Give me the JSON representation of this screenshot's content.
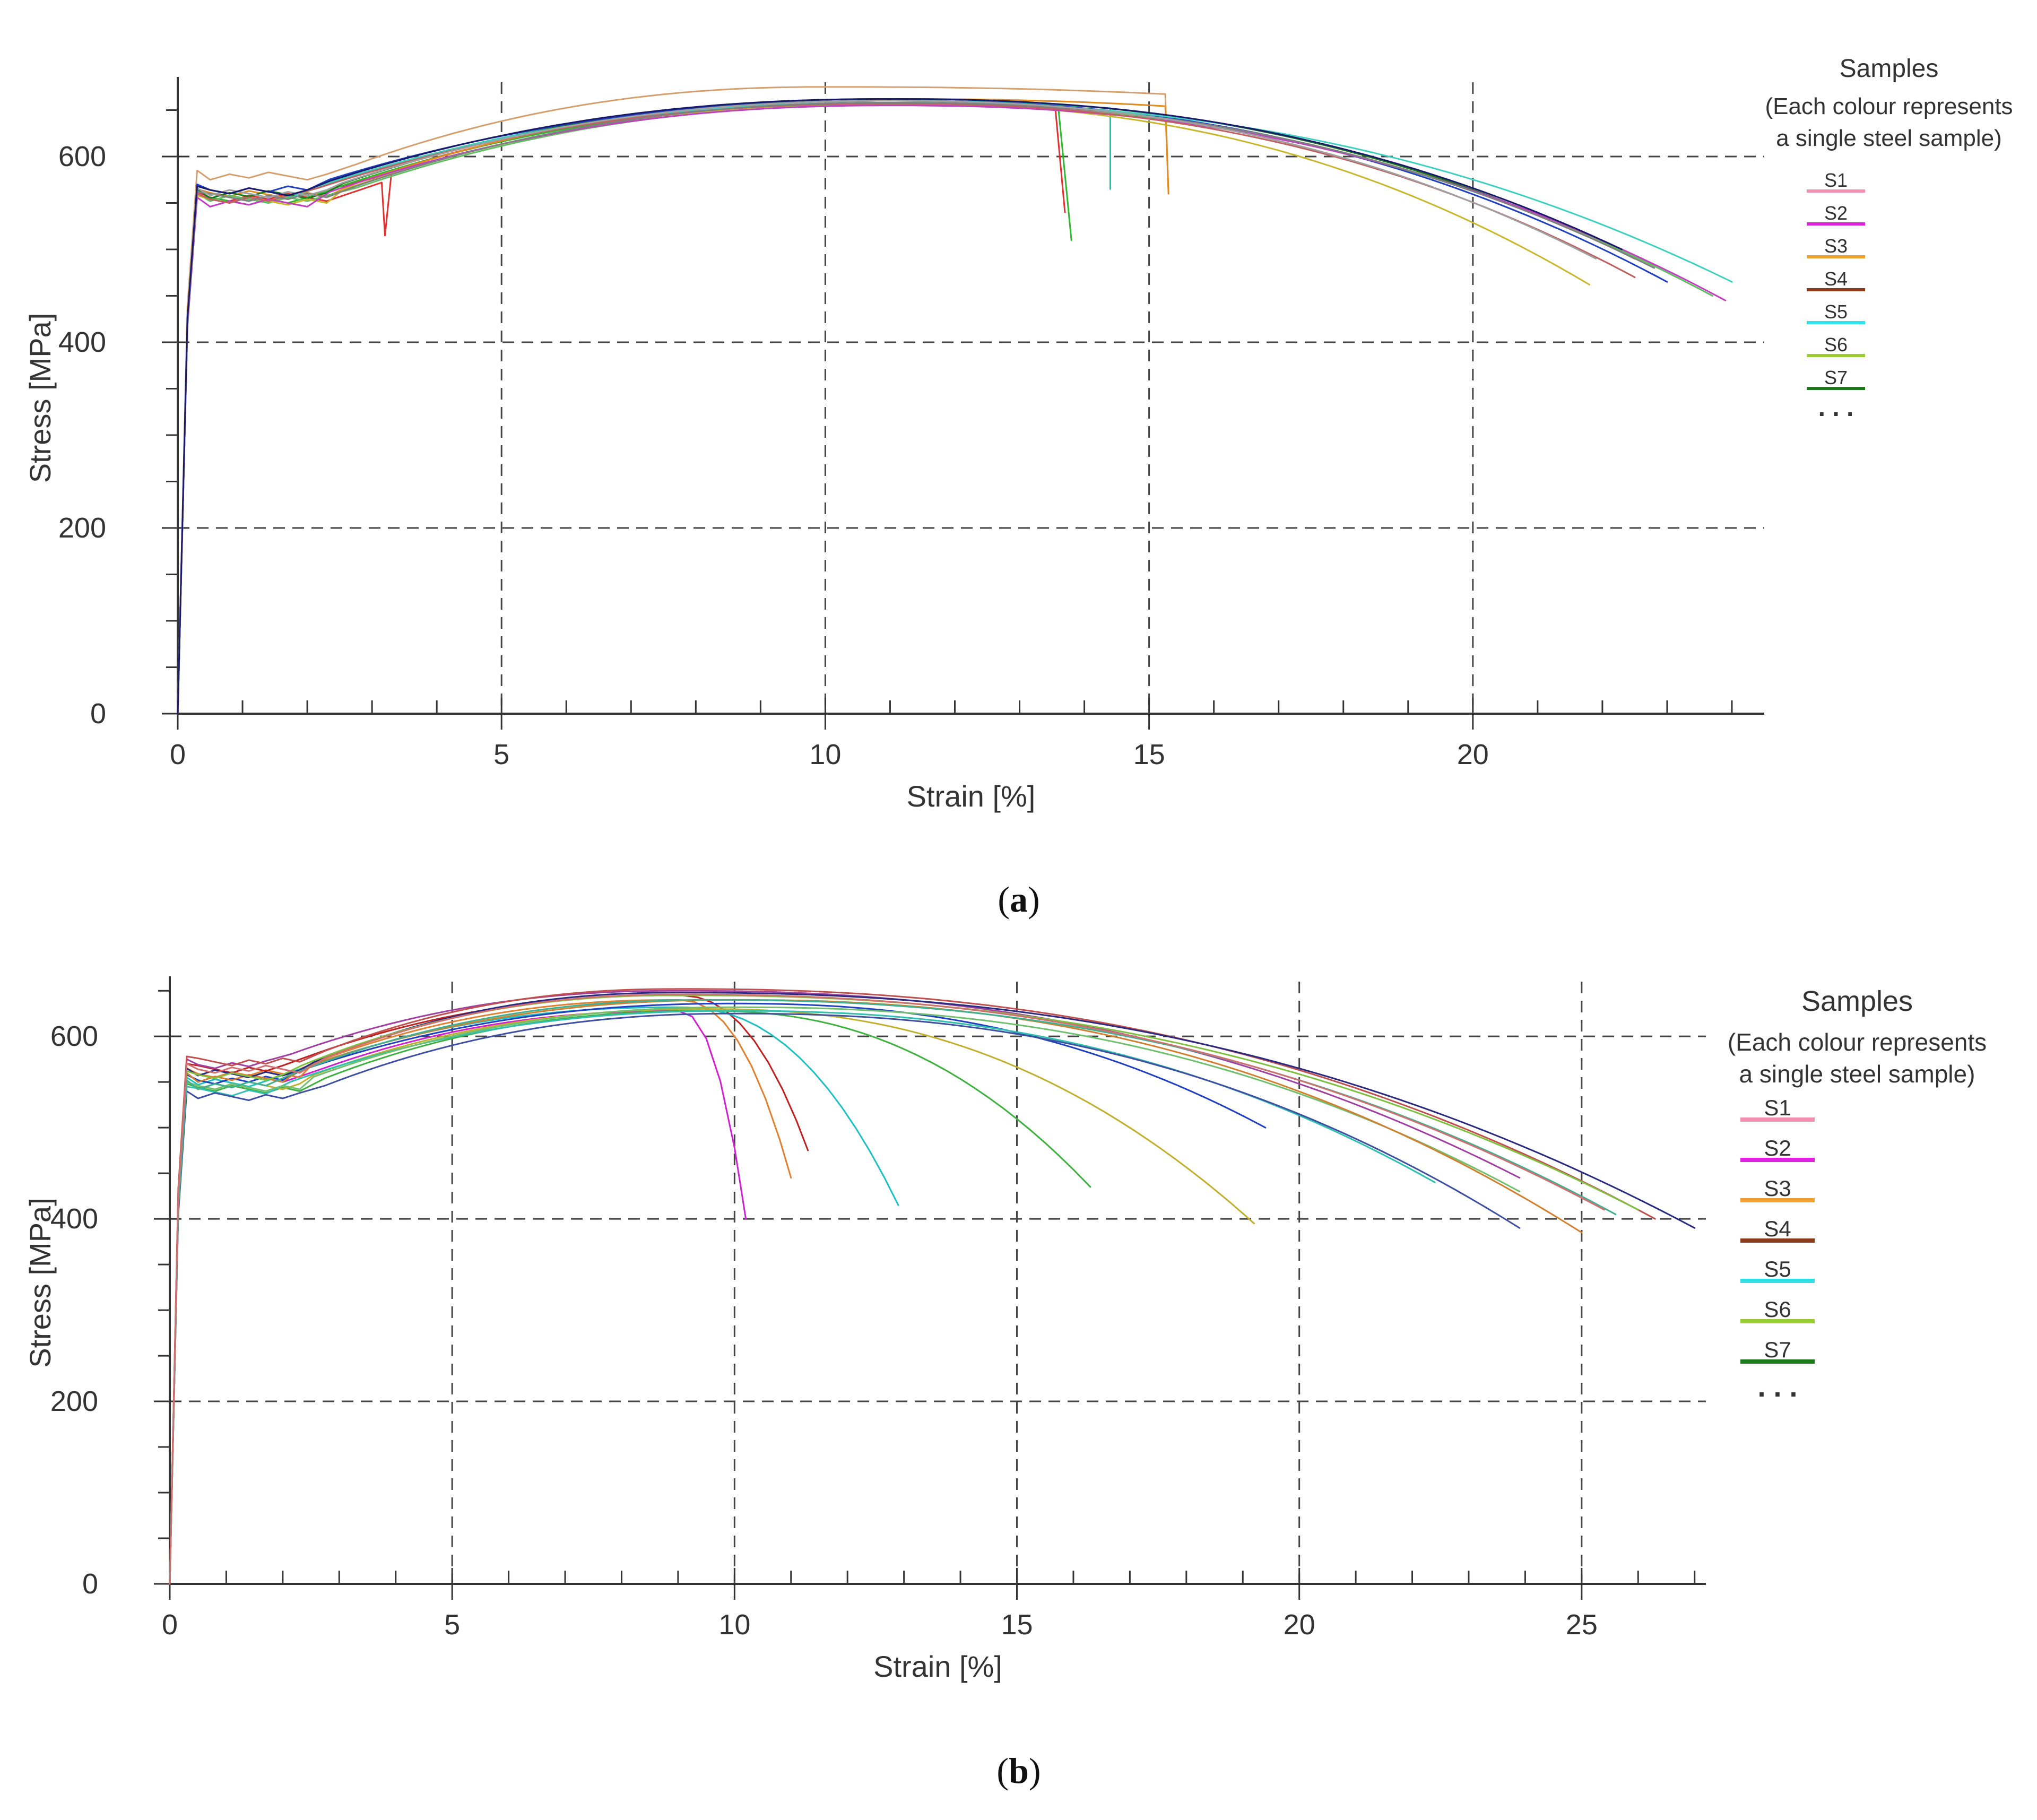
{
  "figure": {
    "captions": [
      "(a)",
      "(b)"
    ],
    "caption_letters": [
      "a",
      "b"
    ]
  },
  "chart_data": [
    {
      "id": "a",
      "type": "line",
      "xlabel": "Strain [%]",
      "ylabel": "Stress [MPa]",
      "xlim": [
        0,
        24.5
      ],
      "ylim": [
        0,
        680
      ],
      "xticks": [
        0,
        5,
        10,
        15,
        20
      ],
      "yticks": [
        0,
        200,
        400,
        600
      ],
      "grid_x": [
        5,
        10,
        15,
        20
      ],
      "grid_y": [
        200,
        400,
        600
      ],
      "legend": {
        "position": "right",
        "title": "Samples",
        "subtitle_lines": [
          "(Each colour represents",
          "a single steel sample)"
        ],
        "entries": [
          {
            "label": "S1",
            "color": "#f48fb1"
          },
          {
            "label": "S2",
            "color": "#e01fe0"
          },
          {
            "label": "S3",
            "color": "#f0a030"
          },
          {
            "label": "S4",
            "color": "#8b3a1a"
          },
          {
            "label": "S5",
            "color": "#33e0e8"
          },
          {
            "label": "S6",
            "color": "#9acd32"
          },
          {
            "label": "S7",
            "color": "#1a7a1a"
          }
        ],
        "ellipsis": ". . ."
      },
      "series": [
        {
          "name": "a1",
          "color": "#d4a070",
          "yield": 585,
          "uts": 675,
          "uts_strain": 10,
          "break_strain": 15.3,
          "break_stress": 560,
          "ultimate_drop": false
        },
        {
          "name": "a2",
          "color": "#e03030",
          "yield": 562,
          "uts": 660,
          "uts_strain": 11,
          "break_strain": 13.7,
          "break_stress": 540,
          "dip_at": 3.2,
          "dip_to": 515
        },
        {
          "name": "a3",
          "color": "#2eb82e",
          "yield": 558,
          "uts": 658,
          "uts_strain": 11,
          "break_strain": 13.8,
          "break_stress": 510
        },
        {
          "name": "a4",
          "color": "#20c0b0",
          "yield": 560,
          "uts": 660,
          "uts_strain": 11,
          "break_strain": 14.4,
          "break_stress": 565
        },
        {
          "name": "a5",
          "color": "#e08a20",
          "yield": 565,
          "uts": 662,
          "uts_strain": 11,
          "break_strain": 15.3,
          "break_stress": 560
        },
        {
          "name": "a6",
          "color": "#1a7a1a",
          "yield": 565,
          "uts": 662,
          "uts_strain": 11,
          "break_strain": 22.5,
          "break_stress": 490
        },
        {
          "name": "a7",
          "color": "#2040c0",
          "yield": 570,
          "uts": 660,
          "uts_strain": 11,
          "break_strain": 23.0,
          "break_stress": 465
        },
        {
          "name": "a8",
          "color": "#40d0c0",
          "yield": 562,
          "uts": 658,
          "uts_strain": 11,
          "break_strain": 24.0,
          "break_stress": 465
        },
        {
          "name": "a9",
          "color": "#60c060",
          "yield": 560,
          "uts": 656,
          "uts_strain": 11,
          "break_strain": 23.7,
          "break_stress": 450
        },
        {
          "name": "a10",
          "color": "#c8b830",
          "yield": 558,
          "uts": 657,
          "uts_strain": 11,
          "break_strain": 21.8,
          "break_stress": 462
        },
        {
          "name": "a11",
          "color": "#c040c0",
          "yield": 556,
          "uts": 655,
          "uts_strain": 11,
          "break_strain": 23.9,
          "break_stress": 445
        },
        {
          "name": "a12",
          "color": "#c06060",
          "yield": 560,
          "uts": 657,
          "uts_strain": 11,
          "break_strain": 22.5,
          "break_stress": 470
        },
        {
          "name": "a13",
          "color": "#808080",
          "yield": 562,
          "uts": 658,
          "uts_strain": 11,
          "break_strain": 22.8,
          "break_stress": 480
        },
        {
          "name": "a14",
          "color": "#a0a0a0",
          "yield": 566,
          "uts": 660,
          "uts_strain": 11,
          "break_strain": 21.9,
          "break_stress": 490
        },
        {
          "name": "a15",
          "color": "#1a1a6a",
          "yield": 568,
          "uts": 662,
          "uts_strain": 11,
          "break_strain": 22.3,
          "break_stress": 500
        }
      ]
    },
    {
      "id": "b",
      "type": "line",
      "xlabel": "Strain [%]",
      "ylabel": "Stress [MPa]",
      "xlim": [
        0,
        27.2
      ],
      "ylim": [
        0,
        660
      ],
      "xticks": [
        0,
        5,
        10,
        15,
        20,
        25
      ],
      "yticks": [
        0,
        200,
        400,
        600
      ],
      "grid_x": [
        5,
        10,
        15,
        20,
        25
      ],
      "grid_y": [
        200,
        400,
        600
      ],
      "legend": {
        "position": "right",
        "title": "Samples",
        "subtitle_lines": [
          "(Each colour represents",
          "a single steel sample)"
        ],
        "entries": [
          {
            "label": "S1",
            "color": "#f48fb1"
          },
          {
            "label": "S2",
            "color": "#e01fe0"
          },
          {
            "label": "S3",
            "color": "#f0a030"
          },
          {
            "label": "S4",
            "color": "#8b3a1a"
          },
          {
            "label": "S5",
            "color": "#33e0e8"
          },
          {
            "label": "S6",
            "color": "#9acd32"
          },
          {
            "label": "S7",
            "color": "#1a7a1a"
          }
        ],
        "ellipsis": ". . ."
      },
      "series": [
        {
          "name": "b1",
          "color": "#d020d0",
          "yield": 560,
          "uts": 628,
          "uts_strain": 9,
          "break_strain": 10.2,
          "break_stress": 400
        },
        {
          "name": "b2",
          "color": "#e08030",
          "yield": 565,
          "uts": 640,
          "uts_strain": 9,
          "break_strain": 11.0,
          "break_stress": 445
        },
        {
          "name": "b3",
          "color": "#c02020",
          "yield": 570,
          "uts": 645,
          "uts_strain": 9,
          "break_strain": 11.3,
          "break_stress": 475
        },
        {
          "name": "b4",
          "color": "#20c0c0",
          "yield": 555,
          "uts": 632,
          "uts_strain": 9,
          "break_strain": 12.9,
          "break_stress": 415
        },
        {
          "name": "b5",
          "color": "#40b040",
          "yield": 548,
          "uts": 628,
          "uts_strain": 9.5,
          "break_strain": 16.3,
          "break_stress": 435
        },
        {
          "name": "b6",
          "color": "#c0b030",
          "yield": 552,
          "uts": 630,
          "uts_strain": 9.5,
          "break_strain": 19.2,
          "break_stress": 395
        },
        {
          "name": "b7",
          "color": "#2040c0",
          "yield": 558,
          "uts": 636,
          "uts_strain": 10,
          "break_strain": 19.4,
          "break_stress": 500
        },
        {
          "name": "b8",
          "color": "#30c0b0",
          "yield": 545,
          "uts": 628,
          "uts_strain": 10,
          "break_strain": 22.4,
          "break_stress": 440
        },
        {
          "name": "b9",
          "color": "#4050a0",
          "yield": 540,
          "uts": 625,
          "uts_strain": 10,
          "break_strain": 23.9,
          "break_stress": 390
        },
        {
          "name": "b10",
          "color": "#70c070",
          "yield": 550,
          "uts": 632,
          "uts_strain": 10,
          "break_strain": 23.9,
          "break_stress": 430
        },
        {
          "name": "b11",
          "color": "#d08030",
          "yield": 560,
          "uts": 640,
          "uts_strain": 10,
          "break_strain": 25.0,
          "break_stress": 385
        },
        {
          "name": "b12",
          "color": "#a040a0",
          "yield": 575,
          "uts": 650,
          "uts_strain": 9,
          "break_strain": 23.9,
          "break_stress": 445
        },
        {
          "name": "b13",
          "color": "#c05050",
          "yield": 578,
          "uts": 652,
          "uts_strain": 9,
          "break_strain": 26.3,
          "break_stress": 400
        },
        {
          "name": "b14",
          "color": "#2a2a80",
          "yield": 565,
          "uts": 648,
          "uts_strain": 9,
          "break_strain": 27.0,
          "break_stress": 390
        },
        {
          "name": "b15",
          "color": "#80c040",
          "yield": 562,
          "uts": 645,
          "uts_strain": 9,
          "break_strain": 26.0,
          "break_stress": 410
        },
        {
          "name": "b16",
          "color": "#40b090",
          "yield": 552,
          "uts": 640,
          "uts_strain": 9.5,
          "break_strain": 25.6,
          "break_stress": 405
        },
        {
          "name": "b17",
          "color": "#d07070",
          "yield": 570,
          "uts": 646,
          "uts_strain": 9,
          "break_strain": 25.4,
          "break_stress": 410
        }
      ]
    }
  ]
}
